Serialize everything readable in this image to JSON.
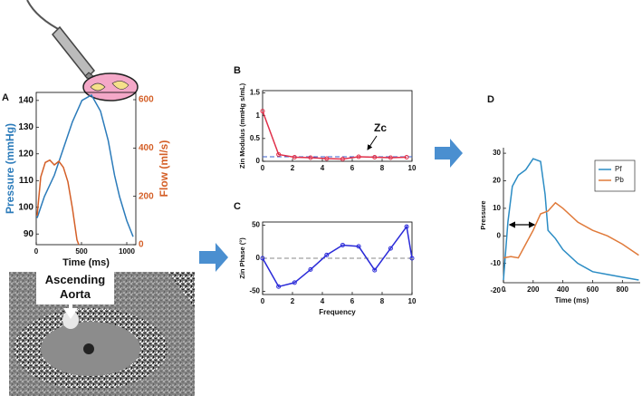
{
  "image_annotation": "Ascending Aorta",
  "chart_data": [
    {
      "type": "line",
      "panel": "A",
      "box": true,
      "xlabel": "Time (ms)",
      "ylabel": "Pressure (mmHg)",
      "y2label": "Flow (ml/s)",
      "xlim": [
        0,
        1100
      ],
      "xticks": [
        0,
        500,
        1000
      ],
      "ylim": [
        86,
        143
      ],
      "yticks": [
        90,
        100,
        110,
        120,
        130,
        140
      ],
      "y2lim": [
        0,
        630
      ],
      "y2ticks": [
        0,
        200,
        400,
        600
      ],
      "series": [
        {
          "color": "#2b7bba",
          "x": [
            10,
            90,
            200,
            300,
            400,
            505,
            610,
            710,
            795,
            865,
            920,
            1000,
            1070
          ],
          "values": [
            96,
            104,
            112,
            122,
            132,
            140,
            142,
            136,
            125,
            112,
            104,
            95,
            89
          ]
        },
        {
          "color": "#d45f27",
          "axis": "y2",
          "x": [
            10,
            50,
            100,
            150,
            200,
            250,
            300,
            350,
            400,
            450,
            470
          ],
          "values": [
            120,
            280,
            340,
            350,
            330,
            345,
            320,
            260,
            150,
            20,
            0
          ]
        }
      ]
    },
    {
      "type": "line",
      "panel": "B",
      "box": true,
      "ylabel": "Zin Modulus (mmHg s/mL)",
      "xlim": [
        0,
        10
      ],
      "xticks": [
        0,
        2,
        4,
        6,
        8,
        10
      ],
      "ylim": [
        0,
        1.55
      ],
      "yticks": [
        0,
        0.5,
        1,
        1.5
      ],
      "reference_line": {
        "value": 0.1,
        "color": "#3a5fcd"
      },
      "annotation": "Zc",
      "series": [
        {
          "color": "#e0304a",
          "marker": true,
          "x": [
            0,
            1.07,
            2.14,
            3.21,
            4.29,
            5.36,
            6.43,
            7.5,
            8.57,
            9.64
          ],
          "values": [
            1.1,
            0.15,
            0.09,
            0.08,
            0.06,
            0.05,
            0.1,
            0.09,
            0.08,
            0.09
          ]
        }
      ]
    },
    {
      "type": "line",
      "panel": "C",
      "box": true,
      "xlabel": "Frequency",
      "ylabel": "Zin Phase (°)",
      "xlim": [
        0,
        10
      ],
      "xticks": [
        0,
        2,
        4,
        6,
        8,
        10
      ],
      "ylim": [
        -55,
        55
      ],
      "yticks": [
        -50,
        0,
        50
      ],
      "reference_line": {
        "value": 0,
        "color": "#888888"
      },
      "series": [
        {
          "color": "#2a2ad8",
          "marker": true,
          "x": [
            0,
            1.07,
            2.14,
            3.21,
            4.29,
            5.36,
            6.43,
            7.5,
            8.57,
            9.64,
            10
          ],
          "values": [
            0,
            -43,
            -37,
            -17,
            5,
            20,
            18,
            -18,
            15,
            48,
            0
          ]
        }
      ]
    },
    {
      "type": "line",
      "panel": "D",
      "box": false,
      "xlabel": "Time (ms)",
      "ylabel": "Pressure",
      "xlim": [
        0,
        920
      ],
      "xticks": [
        0,
        200,
        400,
        600,
        800
      ],
      "ylim": [
        -17,
        32
      ],
      "yticks": [
        -20,
        -10,
        0,
        10,
        20,
        30
      ],
      "legend": "upper right",
      "series": [
        {
          "name": "Pf",
          "color": "#2b8cc4",
          "x": [
            0,
            30,
            60,
            100,
            150,
            200,
            250,
            280,
            300,
            350,
            400,
            500,
            600,
            700,
            800,
            910
          ],
          "values": [
            -16,
            5,
            18,
            22,
            24,
            28,
            27,
            15,
            2,
            -1,
            -5,
            -10,
            -13,
            -14,
            -15,
            -16
          ]
        },
        {
          "name": "Pb",
          "color": "#e07a3a",
          "x": [
            0,
            50,
            100,
            150,
            200,
            250,
            300,
            350,
            400,
            500,
            600,
            700,
            800,
            910
          ],
          "values": [
            -8,
            -7.5,
            -8,
            -3,
            2,
            8,
            9,
            12,
            10,
            5,
            2,
            0,
            -3,
            -7
          ]
        }
      ]
    }
  ]
}
